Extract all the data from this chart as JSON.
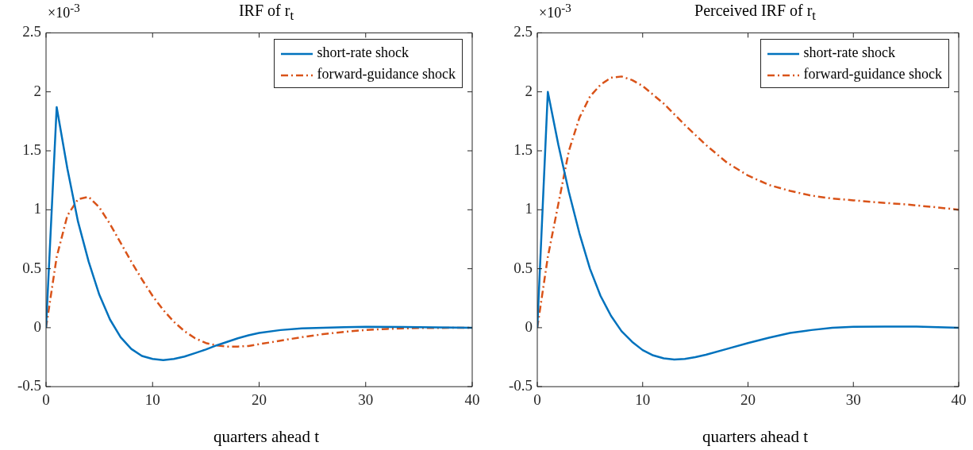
{
  "chart_data": [
    {
      "type": "line",
      "title": "IRF of r$_{t}$",
      "xlabel": "quarters ahead t",
      "xlim": [
        0,
        40
      ],
      "xticks": [
        0,
        10,
        20,
        30,
        40
      ],
      "ylim": [
        -0.5,
        2.5
      ],
      "yticks": [
        -0.5,
        0,
        0.5,
        1,
        1.5,
        2,
        2.5
      ],
      "grid": false,
      "legend": "top right",
      "marker": "none",
      "annotations": [
        "×10$^{-3}$"
      ],
      "series": [
        {
          "name": "short-rate shock",
          "color": "#0072bd",
          "line_style": "solid",
          "x": [
            0,
            1,
            2,
            3,
            4,
            5,
            6,
            7,
            8,
            9,
            10,
            11,
            12,
            13,
            14,
            15,
            16,
            17,
            18,
            19,
            20,
            22,
            24,
            26,
            28,
            30,
            35,
            40
          ],
          "values": [
            0,
            1.87,
            1.35,
            0.9,
            0.56,
            0.28,
            0.07,
            -0.08,
            -0.18,
            -0.24,
            -0.265,
            -0.275,
            -0.265,
            -0.245,
            -0.215,
            -0.185,
            -0.15,
            -0.12,
            -0.09,
            -0.065,
            -0.045,
            -0.02,
            -0.005,
            0,
            0.005,
            0.008,
            0.005,
            0
          ]
        },
        {
          "name": "forward-guidance shock",
          "color": "#d95319",
          "line_style": "dashdot",
          "x": [
            0,
            1,
            2,
            3,
            4,
            5,
            6,
            7,
            8,
            9,
            10,
            11,
            12,
            13,
            14,
            15,
            16,
            17,
            18,
            19,
            20,
            22,
            24,
            26,
            28,
            30,
            32,
            35,
            40
          ],
          "values": [
            0,
            0.6,
            0.95,
            1.09,
            1.11,
            1.02,
            0.88,
            0.72,
            0.56,
            0.41,
            0.27,
            0.15,
            0.05,
            -0.03,
            -0.09,
            -0.13,
            -0.15,
            -0.16,
            -0.16,
            -0.155,
            -0.14,
            -0.11,
            -0.08,
            -0.055,
            -0.035,
            -0.02,
            -0.01,
            -0.003,
            0
          ]
        }
      ]
    },
    {
      "type": "line",
      "title": "Perceived IRF of r$_{t}$",
      "xlabel": "quarters ahead t",
      "xlim": [
        0,
        40
      ],
      "xticks": [
        0,
        10,
        20,
        30,
        40
      ],
      "ylim": [
        -0.5,
        2.5
      ],
      "yticks": [
        -0.5,
        0,
        0.5,
        1,
        1.5,
        2,
        2.5
      ],
      "grid": false,
      "legend": "top right",
      "marker": "none",
      "annotations": [
        "×10$^{-3}$"
      ],
      "series": [
        {
          "name": "short-rate shock",
          "color": "#0072bd",
          "line_style": "solid",
          "x": [
            0,
            1,
            2,
            3,
            4,
            5,
            6,
            7,
            8,
            9,
            10,
            11,
            12,
            13,
            14,
            15,
            16,
            18,
            20,
            22,
            24,
            26,
            28,
            30,
            33,
            36,
            40
          ],
          "values": [
            0,
            2.0,
            1.55,
            1.15,
            0.8,
            0.5,
            0.27,
            0.1,
            -0.03,
            -0.12,
            -0.19,
            -0.235,
            -0.26,
            -0.27,
            -0.265,
            -0.25,
            -0.23,
            -0.18,
            -0.13,
            -0.085,
            -0.045,
            -0.02,
            0,
            0.008,
            0.01,
            0.01,
            0
          ]
        },
        {
          "name": "forward-guidance shock",
          "color": "#d95319",
          "line_style": "dashdot",
          "x": [
            0,
            1,
            2,
            3,
            4,
            5,
            6,
            7,
            8,
            9,
            10,
            12,
            14,
            16,
            18,
            20,
            22,
            24,
            26,
            28,
            30,
            32,
            35,
            38,
            40
          ],
          "values": [
            0,
            0.6,
            1.05,
            1.5,
            1.78,
            1.96,
            2.06,
            2.12,
            2.13,
            2.1,
            2.05,
            1.9,
            1.72,
            1.55,
            1.4,
            1.29,
            1.21,
            1.16,
            1.12,
            1.095,
            1.08,
            1.065,
            1.045,
            1.02,
            1.0
          ]
        }
      ]
    }
  ]
}
